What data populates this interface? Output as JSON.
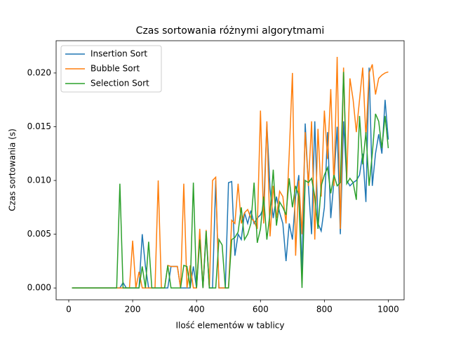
{
  "chart_data": {
    "type": "line",
    "title": "Czas sortowania różnymi algorytmami",
    "xlabel": "Ilość elementów w tablicy",
    "ylabel": "Czas sortowania (s)",
    "x": [
      10,
      20,
      30,
      40,
      50,
      60,
      70,
      80,
      90,
      100,
      110,
      120,
      130,
      140,
      150,
      160,
      170,
      180,
      190,
      200,
      210,
      220,
      230,
      240,
      250,
      260,
      270,
      280,
      290,
      300,
      310,
      320,
      330,
      340,
      350,
      360,
      370,
      380,
      390,
      400,
      410,
      420,
      430,
      440,
      450,
      460,
      470,
      480,
      490,
      500,
      510,
      520,
      530,
      540,
      550,
      560,
      570,
      580,
      590,
      600,
      610,
      620,
      630,
      640,
      650,
      660,
      670,
      680,
      690,
      700,
      710,
      720,
      730,
      740,
      750,
      760,
      770,
      780,
      790,
      800,
      810,
      820,
      830,
      840,
      850,
      860,
      870,
      880,
      890,
      900,
      910,
      920,
      930,
      940,
      950,
      960,
      970,
      980,
      990,
      1000
    ],
    "series": [
      {
        "name": "Insertion Sort",
        "color": "#1f77b4",
        "values": [
          0,
          0,
          0,
          0,
          0,
          0,
          0,
          0,
          0,
          0,
          0,
          0,
          0,
          0,
          0,
          0,
          0.0005,
          0,
          0,
          0,
          0,
          0,
          0.005,
          0.002,
          0,
          0,
          0,
          0,
          0,
          0,
          0,
          0.002,
          0.002,
          0.002,
          0,
          0,
          0,
          0,
          0.002,
          0,
          0.005,
          0,
          0.005,
          0,
          0,
          0.01,
          0,
          0,
          0,
          0.0098,
          0.0099,
          0.003,
          0.005,
          0.0045,
          0.007,
          0.006,
          0.0072,
          0.006,
          0.0065,
          0.0068,
          0.0075,
          0.0153,
          0.0092,
          0.0065,
          0.0085,
          0.007,
          0.006,
          0.0025,
          0.006,
          0.0045,
          0.0085,
          0.0105,
          0.0015,
          0.0153,
          0.0095,
          0.005,
          0.0155,
          0.006,
          0.0053,
          0.0075,
          0.0145,
          0.0065,
          0.01,
          0.015,
          0.005,
          0.0155,
          0.01,
          0.0095,
          0.0098,
          0.01,
          0.0105,
          0.0125,
          0.008,
          0.0205,
          0.0095,
          0.0125,
          0.0143,
          0.0125,
          0.0175,
          0.0138
        ]
      },
      {
        "name": "Bubble Sort",
        "color": "#ff7f0e",
        "values": [
          0,
          0,
          0,
          0,
          0,
          0,
          0,
          0,
          0,
          0,
          0,
          0,
          0,
          0,
          0,
          0,
          0,
          0,
          0,
          0.0044,
          0,
          0.0015,
          0,
          0,
          0,
          0,
          0,
          0.01,
          0,
          0,
          0.0021,
          0.002,
          0.002,
          0.002,
          0,
          0.0097,
          0,
          0.0021,
          0,
          0,
          0.0055,
          0,
          0.0054,
          0,
          0.01,
          0.0103,
          0,
          0,
          0,
          0,
          0.0063,
          0.006,
          0.0097,
          0.006,
          0.007,
          0.0073,
          0.0065,
          0.0062,
          0.0055,
          0.0165,
          0.006,
          0.0155,
          0.0048,
          0.0095,
          0.0065,
          0.009,
          0.0085,
          0.006,
          0.0125,
          0.02,
          0.003,
          0.01,
          0.005,
          0.0145,
          0.0095,
          0.0155,
          0.0045,
          0.0148,
          0.0085,
          0.0165,
          0.012,
          0.0185,
          0.0095,
          0.0215,
          0.0055,
          0.0205,
          0.01,
          0.0195,
          0.0175,
          0.0145,
          0.0175,
          0.0205,
          0.014,
          0.02,
          0.0208,
          0.018,
          0.0195,
          0.0198,
          0.02,
          0.0201
        ]
      },
      {
        "name": "Selection Sort",
        "color": "#2ca02c",
        "values": [
          0,
          0,
          0,
          0,
          0,
          0,
          0,
          0,
          0,
          0,
          0,
          0,
          0,
          0,
          0,
          0.0097,
          0,
          0,
          0,
          0,
          0,
          0,
          0.002,
          0,
          0.0043,
          0,
          0,
          0,
          0,
          0,
          0.0021,
          0,
          0,
          0,
          0,
          0.0021,
          0.002,
          0,
          0.0098,
          0,
          0.0045,
          0,
          0.0053,
          0,
          0,
          0,
          0.0045,
          0.004,
          0,
          0,
          0.0045,
          0.0047,
          0.0052,
          0.0075,
          0.0045,
          0.005,
          0.006,
          0.0098,
          0.0042,
          0.0055,
          0.0085,
          0.0045,
          0.007,
          0.011,
          0.0058,
          0.008,
          0.0075,
          0.0068,
          0.0102,
          0.0075,
          0.0095,
          0.0085,
          0,
          0.01,
          0.0098,
          0.0102,
          0.0085,
          0.0055,
          0.0095,
          0.0105,
          0.0112,
          0.0088,
          0.0105,
          0.0095,
          0.0098,
          0.0201,
          0.0097,
          0.0102,
          0.0098,
          0.0082,
          0.016,
          0.0115,
          0.0145,
          0.0095,
          0.0125,
          0.0162,
          0.0155,
          0.013,
          0.016,
          0.013
        ]
      }
    ],
    "xlim": [
      -39.5,
      1049.5
    ],
    "ylim": [
      -0.0011,
      0.023
    ],
    "xticks": [
      0,
      200,
      400,
      600,
      800,
      1000
    ],
    "yticks": [
      {
        "value": 0,
        "label": "0.000"
      },
      {
        "value": 0.005,
        "label": "0.005"
      },
      {
        "value": 0.01,
        "label": "0.010"
      },
      {
        "value": 0.015,
        "label": "0.015"
      },
      {
        "value": 0.02,
        "label": "0.020"
      }
    ],
    "legend": "upper left"
  }
}
